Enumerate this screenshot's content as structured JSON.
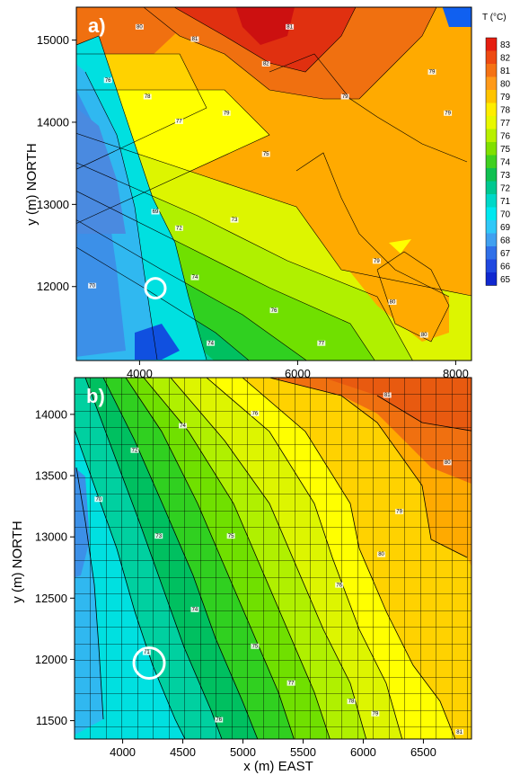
{
  "chart_data": [
    {
      "type": "heatmap",
      "panel_label": "a)",
      "xlabel": "",
      "ylabel": "y (m) NORTH",
      "xlim": [
        3200,
        8200
      ],
      "ylim": [
        11100,
        15400
      ],
      "x_ticks": [
        4000,
        6000,
        8000
      ],
      "y_ticks": [
        12000,
        13000,
        14000,
        15000
      ],
      "x_tick_labels": [
        "4000",
        "6000",
        "8000"
      ],
      "y_tick_labels": [
        "12000",
        "13000",
        "14000",
        "15000"
      ],
      "marker_circle": {
        "x": 4200,
        "y": 11980
      },
      "contour_labels": [
        {
          "x": 4000,
          "y": 15150,
          "text": "80"
        },
        {
          "x": 4700,
          "y": 15000,
          "text": "81"
        },
        {
          "x": 5600,
          "y": 14700,
          "text": "82"
        },
        {
          "x": 5900,
          "y": 15150,
          "text": "81"
        },
        {
          "x": 3600,
          "y": 14500,
          "text": "76"
        },
        {
          "x": 4100,
          "y": 14300,
          "text": "78"
        },
        {
          "x": 4500,
          "y": 14000,
          "text": "77"
        },
        {
          "x": 5100,
          "y": 14100,
          "text": "79"
        },
        {
          "x": 5600,
          "y": 13600,
          "text": "75"
        },
        {
          "x": 6600,
          "y": 14300,
          "text": "79"
        },
        {
          "x": 7900,
          "y": 14100,
          "text": "79"
        },
        {
          "x": 7700,
          "y": 14600,
          "text": "79"
        },
        {
          "x": 4200,
          "y": 12900,
          "text": "69"
        },
        {
          "x": 4500,
          "y": 12700,
          "text": "72"
        },
        {
          "x": 4700,
          "y": 12100,
          "text": "74"
        },
        {
          "x": 5200,
          "y": 12800,
          "text": "73"
        },
        {
          "x": 3400,
          "y": 12000,
          "text": "70"
        },
        {
          "x": 5700,
          "y": 11700,
          "text": "76"
        },
        {
          "x": 7000,
          "y": 12300,
          "text": "79"
        },
        {
          "x": 7200,
          "y": 11800,
          "text": "80"
        },
        {
          "x": 7600,
          "y": 11400,
          "text": "80"
        },
        {
          "x": 4900,
          "y": 11300,
          "text": "74"
        },
        {
          "x": 6300,
          "y": 11300,
          "text": "77"
        }
      ]
    },
    {
      "type": "heatmap",
      "panel_label": "b)",
      "xlabel": "x (m) EAST",
      "ylabel": "y (m) NORTH",
      "xlim": [
        3600,
        6900
      ],
      "ylim": [
        11350,
        14300
      ],
      "x_ticks": [
        4000,
        4500,
        5000,
        5500,
        6000,
        6500
      ],
      "y_ticks": [
        11500,
        12000,
        12500,
        13000,
        13500,
        14000
      ],
      "x_tick_labels": [
        "4000",
        "4500",
        "5000",
        "5500",
        "6000",
        "6500"
      ],
      "y_tick_labels": [
        "11500",
        "12000",
        "12500",
        "13000",
        "13500",
        "14000"
      ],
      "marker_circle": {
        "x": 4220,
        "y": 11970
      },
      "contour_labels": [
        {
          "x": 6200,
          "y": 14150,
          "text": "81"
        },
        {
          "x": 6700,
          "y": 13600,
          "text": "80"
        },
        {
          "x": 5100,
          "y": 14000,
          "text": "76"
        },
        {
          "x": 4500,
          "y": 13900,
          "text": "74"
        },
        {
          "x": 4100,
          "y": 13700,
          "text": "72"
        },
        {
          "x": 3800,
          "y": 13300,
          "text": "70"
        },
        {
          "x": 4300,
          "y": 13000,
          "text": "73"
        },
        {
          "x": 4900,
          "y": 13000,
          "text": "75"
        },
        {
          "x": 5800,
          "y": 12600,
          "text": "76"
        },
        {
          "x": 6300,
          "y": 13200,
          "text": "79"
        },
        {
          "x": 6150,
          "y": 12850,
          "text": "80"
        },
        {
          "x": 4600,
          "y": 12400,
          "text": "74"
        },
        {
          "x": 5100,
          "y": 12100,
          "text": "75"
        },
        {
          "x": 4200,
          "y": 12050,
          "text": "71"
        },
        {
          "x": 5400,
          "y": 11800,
          "text": "77"
        },
        {
          "x": 5900,
          "y": 11650,
          "text": "78"
        },
        {
          "x": 6100,
          "y": 11550,
          "text": "79"
        },
        {
          "x": 4800,
          "y": 11500,
          "text": "76"
        },
        {
          "x": 6800,
          "y": 11400,
          "text": "81"
        }
      ]
    }
  ],
  "legend": {
    "title": "T (°C)",
    "levels": [
      "83",
      "82",
      "81",
      "80",
      "79",
      "78",
      "77",
      "76",
      "75",
      "74",
      "73",
      "72",
      "71",
      "70",
      "69",
      "68",
      "67",
      "66",
      "65"
    ]
  }
}
